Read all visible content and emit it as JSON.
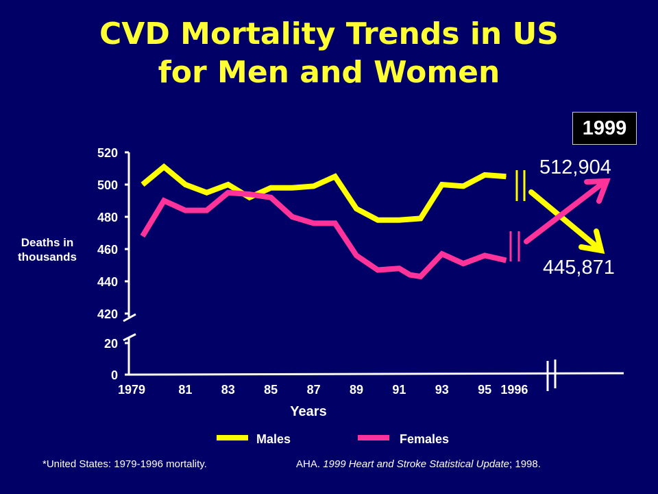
{
  "title_line1": "CVD Mortality Trends in US",
  "title_line2": "for Men and Women",
  "badge_year": "1999",
  "annotation_females_1999": "512,904",
  "annotation_males_1999": "445,871",
  "footnote_left": "*United States: 1979-1996 mortality.",
  "footnote_right_prefix": "AHA. ",
  "footnote_right_italic": "1999 Heart and Stroke Statistical Update",
  "footnote_right_suffix": "; 1998.",
  "colors": {
    "background": "#000066",
    "males": "#ffff00",
    "females": "#ff3399",
    "text": "#ffffff",
    "title": "#ffff33"
  },
  "chart_data": {
    "type": "line",
    "title": "CVD Mortality Trends in US for Men and Women",
    "xlabel": "Years",
    "ylabel_line1": "Deaths in",
    "ylabel_line2": "thousands",
    "x_tick_labels": [
      "1979",
      "81",
      "83",
      "85",
      "87",
      "89",
      "91",
      "93",
      "95",
      "1996"
    ],
    "x_tick_values": [
      1979,
      1981,
      1983,
      1985,
      1987,
      1989,
      1991,
      1993,
      1995,
      1996
    ],
    "y_tick_labels_upper": [
      "520",
      "500",
      "480",
      "460",
      "440",
      "420"
    ],
    "y_tick_labels_lower": [
      "20",
      "0"
    ],
    "y_axis_broken": true,
    "ylim_upper": [
      420,
      520
    ],
    "ylim_lower": [
      0,
      20
    ],
    "grid": false,
    "legend_placement": "bottom",
    "series": [
      {
        "name": "Males",
        "x": [
          1979,
          1980,
          1981,
          1982,
          1983,
          1984,
          1985,
          1986,
          1987,
          1988,
          1989,
          1990,
          1991,
          1992,
          1993,
          1994,
          1995,
          1996
        ],
        "values": [
          500,
          511,
          500,
          495,
          500,
          492,
          498,
          498,
          499,
          505,
          485,
          478,
          478,
          479,
          500,
          499,
          506,
          505
        ]
      },
      {
        "name": "Females",
        "x": [
          1979,
          1980,
          1981,
          1982,
          1983,
          1984,
          1985,
          1986,
          1987,
          1988,
          1989,
          1990,
          1991,
          1991.5,
          1992,
          1993,
          1994,
          1995,
          1996
        ],
        "values": [
          468,
          490,
          484,
          484,
          495,
          494,
          492,
          480,
          476,
          476,
          456,
          447,
          448,
          444,
          443,
          457,
          451,
          456,
          453
        ]
      }
    ],
    "projection_1999": {
      "Females": 512904,
      "Males": 445871
    }
  }
}
